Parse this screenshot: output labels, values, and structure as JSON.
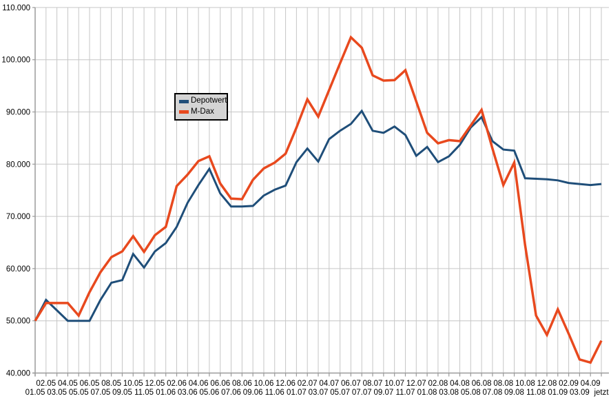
{
  "chart_data": {
    "type": "line",
    "title": "",
    "xlabel": "",
    "ylabel": "",
    "grid": true,
    "legend_position": "upper-left-inside",
    "ylim": [
      40000,
      110000
    ],
    "ytick_labels": [
      "40.000",
      "50.000",
      "60.000",
      "70.000",
      "80.000",
      "90.000",
      "100.000",
      "110.000"
    ],
    "categories": [
      "01.05",
      "02.05",
      "03.05",
      "04.05",
      "05.05",
      "06.05",
      "07.05",
      "08.05",
      "09.05",
      "10.05",
      "11.05",
      "12.05",
      "01.06",
      "02.06",
      "03.06",
      "04.06",
      "05.06",
      "06.06",
      "07.06",
      "08.06",
      "09.06",
      "10.06",
      "11.06",
      "12.06",
      "01.07",
      "02.07",
      "03.07",
      "04.07",
      "05.07",
      "06.07",
      "07.07",
      "08.07",
      "09.07",
      "10.07",
      "11.07",
      "12.07",
      "01.08",
      "02.08",
      "03.08",
      "04.08",
      "05.08",
      "06.08",
      "07.08",
      "08.08",
      "09.08",
      "10.08",
      "11.08",
      "12.08",
      "01.09",
      "02.09",
      "03.09",
      "04.09",
      "jetzt"
    ],
    "series": [
      {
        "name": "Depotwert",
        "color": "#1f4e79",
        "stroke_width": 3,
        "values": [
          50000,
          54000,
          52000,
          50000,
          50000,
          50000,
          54000,
          57300,
          57800,
          62800,
          60200,
          63300,
          64900,
          68000,
          72600,
          76000,
          79100,
          74400,
          71900,
          71900,
          72000,
          74000,
          75100,
          75900,
          80400,
          83000,
          80500,
          84800,
          86400,
          87700,
          90200,
          86400,
          86000,
          87200,
          85600,
          81600,
          83300,
          80400,
          81500,
          83700,
          87000,
          89000,
          84400,
          82800,
          82600,
          77300,
          77200,
          77100,
          76900,
          76400,
          76200,
          76000,
          76200
        ]
      },
      {
        "name": "M-Dax",
        "color": "#e8491e",
        "stroke_width": 3.5,
        "values": [
          50000,
          53400,
          53400,
          53400,
          51000,
          55500,
          59300,
          62200,
          63300,
          66200,
          63200,
          66400,
          68000,
          75800,
          78000,
          80600,
          81500,
          76300,
          73400,
          73300,
          77000,
          79200,
          80300,
          82000,
          87000,
          92400,
          89100,
          94200,
          99300,
          104300,
          102300,
          97000,
          96000,
          96100,
          98000,
          92000,
          86000,
          84000,
          84600,
          84400,
          87400,
          90400,
          83000,
          76000,
          80300,
          64500,
          51000,
          47300,
          52200,
          47500,
          42600,
          42000,
          46200
        ]
      }
    ]
  },
  "legend": {
    "items": [
      {
        "label": "Depotwert",
        "color": "#1f4e79"
      },
      {
        "label": "M-Dax",
        "color": "#e8491e"
      }
    ]
  },
  "style": {
    "background": "#ffffff",
    "gridline_color": "#c6c6c6",
    "axis_color": "#9a9a9a",
    "label_color": "#000000",
    "legend_background": "#d4d4d4",
    "legend_border": "#000000"
  }
}
